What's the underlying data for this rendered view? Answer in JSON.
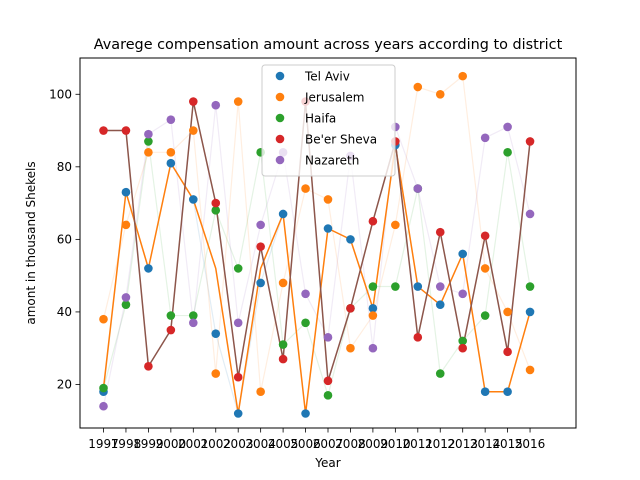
{
  "chart_data": {
    "type": "scatter",
    "title": "Avarege compensation amount across years according to district",
    "xlabel": "Year",
    "ylabel": "amont in thousand Shekels",
    "categories": [
      "1997",
      "1998",
      "1999",
      "2000",
      "2001",
      "2002",
      "2003",
      "2004",
      "2005",
      "2006",
      "2007",
      "2008",
      "2009",
      "2010",
      "2011",
      "2012",
      "2013",
      "2014",
      "2015",
      "2016"
    ],
    "y_ticks": [
      20,
      40,
      60,
      80,
      100
    ],
    "ylim": [
      8,
      110
    ],
    "legend_position": "upper-center",
    "grid": false,
    "series": [
      {
        "name": "Tel Aviv",
        "color": "#1f77b4",
        "values": [
          18,
          73,
          52,
          81,
          71,
          34,
          12,
          48,
          67,
          12,
          63,
          60,
          41,
          86,
          47,
          42,
          56,
          18,
          18,
          40
        ]
      },
      {
        "name": "Jerusalem",
        "color": "#ff7f0e",
        "values": [
          38,
          64,
          84,
          84,
          90,
          23,
          98,
          18,
          48,
          74,
          71,
          30,
          39,
          64,
          102,
          100,
          105,
          52,
          40,
          24
        ]
      },
      {
        "name": "Haifa",
        "color": "#2ca02c",
        "values": [
          19,
          42,
          87,
          39,
          39,
          68,
          52,
          84,
          31,
          37,
          17,
          41,
          47,
          47,
          74,
          23,
          32,
          39,
          84,
          47
        ]
      },
      {
        "name": "Be'er Sheva",
        "color": "#d62728",
        "values": [
          90,
          90,
          25,
          35,
          98,
          70,
          22,
          58,
          27,
          98,
          21,
          41,
          65,
          87,
          33,
          62,
          30,
          61,
          29,
          87
        ]
      },
      {
        "name": "Nazareth",
        "color": "#9467bd",
        "values": [
          14,
          44,
          89,
          93,
          37,
          97,
          37,
          64,
          84,
          45,
          33,
          83,
          30,
          91,
          74,
          47,
          45,
          88,
          91,
          67
        ]
      }
    ],
    "trend_lines": [
      {
        "of": "Jerusalem",
        "color": "#ff7f0e",
        "values": [
          19,
          73,
          52,
          81,
          71,
          52,
          12,
          52,
          67,
          12,
          63,
          60,
          41,
          86,
          47,
          42,
          56,
          18,
          18,
          40
        ]
      },
      {
        "of": "Be'er Sheva",
        "color": "#8c564b",
        "values": [
          90,
          90,
          25,
          35,
          98,
          70,
          22,
          58,
          27,
          98,
          21,
          41,
          65,
          87,
          33,
          62,
          30,
          61,
          29,
          87
        ]
      }
    ]
  }
}
